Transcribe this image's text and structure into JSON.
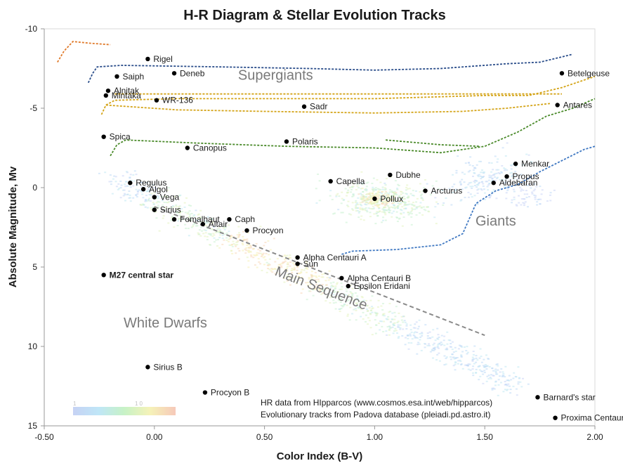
{
  "chart_data": {
    "type": "scatter",
    "title": "H-R Diagram & Stellar Evolution Tracks",
    "xlabel": "Color Index (B-V)",
    "ylabel": "Absolute Magnitude, Mv",
    "xlim": [
      -0.5,
      2.0
    ],
    "ylim": [
      15,
      -10
    ],
    "y_axis_inverted": true,
    "grid": false,
    "x_ticks": [
      {
        "value": -0.5,
        "label": "-0.50"
      },
      {
        "value": 0.0,
        "label": "0.00"
      },
      {
        "value": 0.5,
        "label": "0.50"
      },
      {
        "value": 1.0,
        "label": "1.00"
      },
      {
        "value": 1.5,
        "label": "1.50"
      },
      {
        "value": 2.0,
        "label": "2.00"
      }
    ],
    "y_ticks": [
      {
        "value": -10,
        "label": "-10"
      },
      {
        "value": -5,
        "label": "-5"
      },
      {
        "value": 0,
        "label": "0"
      },
      {
        "value": 5,
        "label": "5"
      },
      {
        "value": 10,
        "label": "10"
      },
      {
        "value": 15,
        "label": "15"
      }
    ],
    "stars": [
      {
        "name": "Rigel",
        "x": -0.03,
        "y": -8.1
      },
      {
        "name": "Deneb",
        "x": 0.09,
        "y": -7.2
      },
      {
        "name": "Saiph",
        "x": -0.17,
        "y": -7.0
      },
      {
        "name": "Betelgeuse",
        "x": 1.85,
        "y": -7.2
      },
      {
        "name": "Alnitak",
        "x": -0.21,
        "y": -6.1
      },
      {
        "name": "Mintaka",
        "x": -0.22,
        "y": -5.8
      },
      {
        "name": "WR-136",
        "x": 0.01,
        "y": -5.5
      },
      {
        "name": "Sadr",
        "x": 0.68,
        "y": -5.1
      },
      {
        "name": "Antares",
        "x": 1.83,
        "y": -5.2
      },
      {
        "name": "Spica",
        "x": -0.23,
        "y": -3.2
      },
      {
        "name": "Polaris",
        "x": 0.6,
        "y": -2.9
      },
      {
        "name": "Canopus",
        "x": 0.15,
        "y": -2.5
      },
      {
        "name": "Menkar",
        "x": 1.64,
        "y": -1.5
      },
      {
        "name": "Dubhe",
        "x": 1.07,
        "y": -0.8
      },
      {
        "name": "Propus",
        "x": 1.6,
        "y": -0.7
      },
      {
        "name": "Capella",
        "x": 0.8,
        "y": -0.4
      },
      {
        "name": "Aldebaran",
        "x": 1.54,
        "y": -0.3
      },
      {
        "name": "Regulus",
        "x": -0.11,
        "y": -0.3
      },
      {
        "name": "Algol",
        "x": -0.05,
        "y": 0.1
      },
      {
        "name": "Arcturus",
        "x": 1.23,
        "y": 0.2
      },
      {
        "name": "Vega",
        "x": 0.0,
        "y": 0.6
      },
      {
        "name": "Pollux",
        "x": 1.0,
        "y": 0.7
      },
      {
        "name": "Sirius",
        "x": 0.0,
        "y": 1.4
      },
      {
        "name": "Fomalhaut",
        "x": 0.09,
        "y": 2.0
      },
      {
        "name": "Caph",
        "x": 0.34,
        "y": 2.0
      },
      {
        "name": "Altair",
        "x": 0.22,
        "y": 2.3
      },
      {
        "name": "Procyon",
        "x": 0.42,
        "y": 2.7
      },
      {
        "name": "Alpha Centauri A",
        "x": 0.65,
        "y": 4.4
      },
      {
        "name": "Sun",
        "x": 0.65,
        "y": 4.8
      },
      {
        "name": "M27 central star",
        "x": -0.23,
        "y": 5.5,
        "bold": true
      },
      {
        "name": "Alpha Centauri B",
        "x": 0.85,
        "y": 5.7
      },
      {
        "name": "Epsilon Eridani",
        "x": 0.88,
        "y": 6.2
      },
      {
        "name": "Sirius B",
        "x": -0.03,
        "y": 11.3
      },
      {
        "name": "Procyon B",
        "x": 0.23,
        "y": 12.9
      },
      {
        "name": "Barnard's star",
        "x": 1.74,
        "y": 13.2
      },
      {
        "name": "Proxima Centauri",
        "x": 1.82,
        "y": 14.5
      }
    ],
    "regions": [
      {
        "label": "Supergiants",
        "x": 0.55,
        "y": -6.8
      },
      {
        "label": "Giants",
        "x": 1.55,
        "y": 2.4
      },
      {
        "label": "White Dwarfs",
        "x": 0.05,
        "y": 8.8
      },
      {
        "label": "Main Sequence",
        "x": 0.75,
        "y": 6.6,
        "rotation": 21
      }
    ],
    "main_sequence_line": [
      [
        0.0,
        1.2
      ],
      [
        1.5,
        9.3
      ]
    ],
    "evolution_tracks": [
      {
        "color": "#e07a2a",
        "points": [
          [
            -0.44,
            -7.9
          ],
          [
            -0.41,
            -8.6
          ],
          [
            -0.37,
            -9.2
          ],
          [
            -0.3,
            -9.1
          ],
          [
            -0.2,
            -9.0
          ]
        ]
      },
      {
        "color": "#2a4d8a",
        "points": [
          [
            -0.3,
            -6.6
          ],
          [
            -0.28,
            -7.2
          ],
          [
            -0.26,
            -7.6
          ],
          [
            -0.15,
            -7.7
          ],
          [
            0.3,
            -7.6
          ],
          [
            0.7,
            -7.5
          ],
          [
            1.0,
            -7.4
          ],
          [
            1.3,
            -7.5
          ],
          [
            1.6,
            -7.8
          ],
          [
            1.75,
            -7.9
          ],
          [
            1.9,
            -8.4
          ]
        ]
      },
      {
        "color": "#d4a418",
        "points": [
          [
            -0.24,
            -4.6
          ],
          [
            -0.22,
            -5.2
          ],
          [
            -0.18,
            -5.5
          ],
          [
            0.1,
            -5.6
          ],
          [
            0.6,
            -5.6
          ],
          [
            1.0,
            -5.6
          ],
          [
            1.5,
            -5.8
          ],
          [
            1.7,
            -5.8
          ],
          [
            1.85,
            -6.3
          ],
          [
            2.0,
            -7.0
          ]
        ]
      },
      {
        "color": "#d4a418",
        "points": [
          [
            -0.22,
            -5.2
          ],
          [
            0.1,
            -4.9
          ],
          [
            0.5,
            -4.8
          ],
          [
            1.0,
            -4.7
          ],
          [
            1.4,
            -4.8
          ],
          [
            1.6,
            -5.0
          ],
          [
            1.8,
            -5.3
          ]
        ]
      },
      {
        "color": "#d4a418",
        "points": [
          [
            -0.18,
            -5.9
          ],
          [
            0.3,
            -5.9
          ],
          [
            0.8,
            -5.9
          ],
          [
            1.3,
            -5.9
          ],
          [
            1.7,
            -5.9
          ],
          [
            1.85,
            -5.9
          ]
        ]
      },
      {
        "color": "#4a8a2a",
        "points": [
          [
            -0.2,
            -2.0
          ],
          [
            -0.17,
            -2.7
          ],
          [
            -0.13,
            -3.0
          ],
          [
            0.2,
            -2.8
          ],
          [
            0.6,
            -2.6
          ],
          [
            1.0,
            -2.5
          ],
          [
            1.3,
            -2.2
          ],
          [
            1.5,
            -2.6
          ],
          [
            1.65,
            -3.5
          ],
          [
            1.78,
            -4.5
          ],
          [
            1.9,
            -5.0
          ],
          [
            2.0,
            -5.6
          ]
        ]
      },
      {
        "color": "#4a8a2a",
        "points": [
          [
            1.05,
            -3.0
          ],
          [
            1.3,
            -2.7
          ],
          [
            1.48,
            -2.6
          ]
        ]
      },
      {
        "color": "#3f78c2",
        "points": [
          [
            0.85,
            4.2
          ],
          [
            0.9,
            4.0
          ],
          [
            1.1,
            3.9
          ],
          [
            1.3,
            3.6
          ],
          [
            1.4,
            2.9
          ],
          [
            1.46,
            1.0
          ],
          [
            1.55,
            0.2
          ],
          [
            1.65,
            -0.2
          ],
          [
            1.75,
            -1.0
          ],
          [
            1.85,
            -1.7
          ],
          [
            1.95,
            -2.4
          ],
          [
            2.0,
            -2.6
          ]
        ]
      }
    ],
    "density_cloud_note": "HR data density shown as colored point cloud",
    "colorbar": {
      "min_label": "1",
      "max_label": "10"
    },
    "credits": [
      "HR data from HIpparcos (www.cosmos.esa.int/web/hipparcos)",
      "Evolutionary tracks from Padova database (pleiadi.pd.astro.it)"
    ],
    "colors": {
      "text": "#1a1a1a",
      "region_label": "#7a7a7a",
      "axis": "#999999"
    }
  }
}
